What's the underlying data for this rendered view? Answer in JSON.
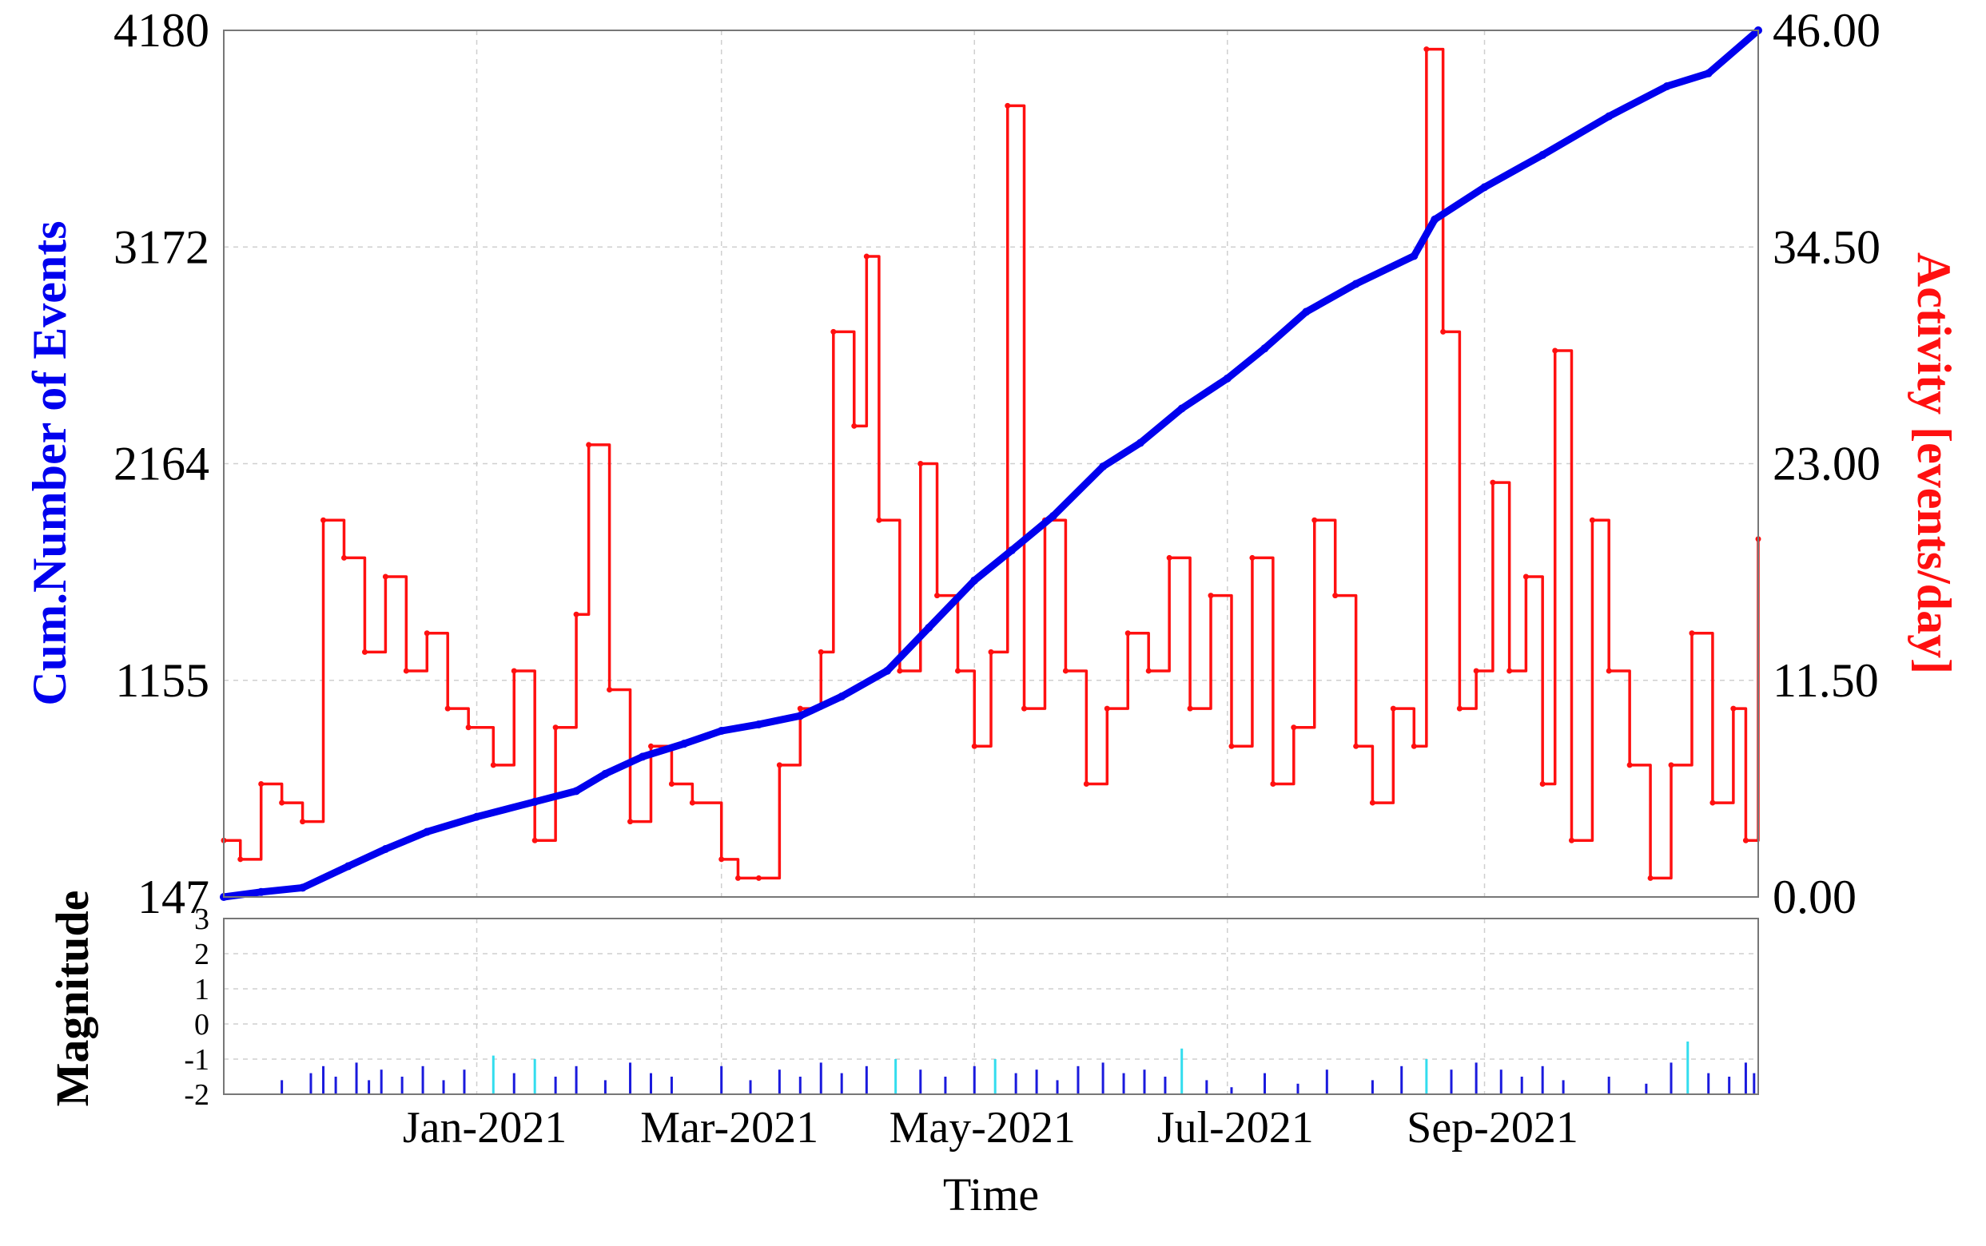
{
  "chart_data": [
    {
      "type": "line",
      "xlabel": "",
      "ylabel_left": "Cum.Number of Events",
      "ylabel_right": "Activity [events/day]",
      "x_range": [
        "2020-11-01",
        "2021-11-06"
      ],
      "x_ticks": [
        "2021-01-01",
        "2021-03-01",
        "2021-05-01",
        "2021-07-01",
        "2021-09-01"
      ],
      "x_tick_labels": [
        "Jan-2021",
        "Mar-2021",
        "May-2021",
        "Jul-2021",
        "Sep-2021"
      ],
      "ylim_left": [
        147,
        4180
      ],
      "yticks_left": [
        "147",
        "1155",
        "2164",
        "3172",
        "4180"
      ],
      "ylim_right": [
        0,
        46
      ],
      "yticks_right": [
        "0.00",
        "11.50",
        "23.00",
        "34.50",
        "46.00"
      ],
      "grid": true,
      "colors": {
        "cumulative": "#0000ee",
        "activity": "#ff1010"
      },
      "series": [
        {
          "name": "Cum.Number of Events",
          "axis": "left",
          "points": [
            [
              "2020-11-01",
              147
            ],
            [
              "2020-11-10",
              170
            ],
            [
              "2020-11-20",
              190
            ],
            [
              "2020-12-01",
              290
            ],
            [
              "2020-12-10",
              370
            ],
            [
              "2020-12-20",
              450
            ],
            [
              "2021-01-01",
              520
            ],
            [
              "2021-01-15",
              590
            ],
            [
              "2021-01-25",
              640
            ],
            [
              "2021-02-01",
              720
            ],
            [
              "2021-02-10",
              800
            ],
            [
              "2021-02-20",
              860
            ],
            [
              "2021-03-01",
              920
            ],
            [
              "2021-03-10",
              950
            ],
            [
              "2021-03-20",
              990
            ],
            [
              "2021-03-30",
              1080
            ],
            [
              "2021-04-10",
              1200
            ],
            [
              "2021-04-20",
              1400
            ],
            [
              "2021-05-01",
              1620
            ],
            [
              "2021-05-10",
              1760
            ],
            [
              "2021-05-20",
              1920
            ],
            [
              "2021-06-01",
              2150
            ],
            [
              "2021-06-10",
              2260
            ],
            [
              "2021-06-20",
              2420
            ],
            [
              "2021-07-01",
              2560
            ],
            [
              "2021-07-10",
              2700
            ],
            [
              "2021-07-20",
              2870
            ],
            [
              "2021-08-01",
              3000
            ],
            [
              "2021-08-15",
              3130
            ],
            [
              "2021-08-20",
              3300
            ],
            [
              "2021-09-01",
              3450
            ],
            [
              "2021-09-15",
              3600
            ],
            [
              "2021-10-01",
              3780
            ],
            [
              "2021-10-15",
              3920
            ],
            [
              "2021-10-25",
              3980
            ],
            [
              "2021-11-06",
              4180
            ]
          ]
        },
        {
          "name": "Activity [events/day]",
          "axis": "right",
          "points": [
            [
              "2020-11-01",
              3
            ],
            [
              "2020-11-05",
              2
            ],
            [
              "2020-11-10",
              6
            ],
            [
              "2020-11-15",
              5
            ],
            [
              "2020-11-20",
              4
            ],
            [
              "2020-11-25",
              20
            ],
            [
              "2020-11-30",
              18
            ],
            [
              "2020-12-05",
              13
            ],
            [
              "2020-12-10",
              17
            ],
            [
              "2020-12-15",
              12
            ],
            [
              "2020-12-20",
              14
            ],
            [
              "2020-12-25",
              10
            ],
            [
              "2020-12-30",
              9
            ],
            [
              "2021-01-05",
              7
            ],
            [
              "2021-01-10",
              12
            ],
            [
              "2021-01-15",
              3
            ],
            [
              "2021-01-20",
              9
            ],
            [
              "2021-01-25",
              15
            ],
            [
              "2021-01-28",
              24
            ],
            [
              "2021-02-02",
              11
            ],
            [
              "2021-02-07",
              4
            ],
            [
              "2021-02-12",
              8
            ],
            [
              "2021-02-17",
              6
            ],
            [
              "2021-02-22",
              5
            ],
            [
              "2021-03-01",
              2
            ],
            [
              "2021-03-05",
              1
            ],
            [
              "2021-03-10",
              1
            ],
            [
              "2021-03-15",
              7
            ],
            [
              "2021-03-20",
              10
            ],
            [
              "2021-03-25",
              13
            ],
            [
              "2021-03-28",
              30
            ],
            [
              "2021-04-02",
              25
            ],
            [
              "2021-04-05",
              34
            ],
            [
              "2021-04-08",
              20
            ],
            [
              "2021-04-13",
              12
            ],
            [
              "2021-04-18",
              23
            ],
            [
              "2021-04-22",
              16
            ],
            [
              "2021-04-27",
              12
            ],
            [
              "2021-05-01",
              8
            ],
            [
              "2021-05-05",
              13
            ],
            [
              "2021-05-09",
              42
            ],
            [
              "2021-05-13",
              10
            ],
            [
              "2021-05-18",
              20
            ],
            [
              "2021-05-23",
              12
            ],
            [
              "2021-05-28",
              6
            ],
            [
              "2021-06-02",
              10
            ],
            [
              "2021-06-07",
              14
            ],
            [
              "2021-06-12",
              12
            ],
            [
              "2021-06-17",
              18
            ],
            [
              "2021-06-22",
              10
            ],
            [
              "2021-06-27",
              16
            ],
            [
              "2021-07-02",
              8
            ],
            [
              "2021-07-07",
              18
            ],
            [
              "2021-07-12",
              6
            ],
            [
              "2021-07-17",
              9
            ],
            [
              "2021-07-22",
              20
            ],
            [
              "2021-07-27",
              16
            ],
            [
              "2021-08-01",
              8
            ],
            [
              "2021-08-05",
              5
            ],
            [
              "2021-08-10",
              10
            ],
            [
              "2021-08-15",
              8
            ],
            [
              "2021-08-18",
              45
            ],
            [
              "2021-08-22",
              30
            ],
            [
              "2021-08-26",
              10
            ],
            [
              "2021-08-30",
              12
            ],
            [
              "2021-09-03",
              22
            ],
            [
              "2021-09-07",
              12
            ],
            [
              "2021-09-11",
              17
            ],
            [
              "2021-09-15",
              6
            ],
            [
              "2021-09-18",
              29
            ],
            [
              "2021-09-22",
              3
            ],
            [
              "2021-09-27",
              20
            ],
            [
              "2021-10-01",
              12
            ],
            [
              "2021-10-06",
              7
            ],
            [
              "2021-10-11",
              1
            ],
            [
              "2021-10-16",
              7
            ],
            [
              "2021-10-21",
              14
            ],
            [
              "2021-10-26",
              5
            ],
            [
              "2021-10-31",
              10
            ],
            [
              "2021-11-03",
              3
            ],
            [
              "2021-11-06",
              19
            ]
          ]
        }
      ]
    },
    {
      "type": "bar",
      "ylabel": "Magnitude",
      "xlabel": "Time",
      "ylim": [
        -2,
        3
      ],
      "yticks": [
        "-2",
        "-1",
        "0",
        "1",
        "2",
        "3"
      ],
      "x_tick_labels": [
        "Jan-2021",
        "Mar-2021",
        "May-2021",
        "Jul-2021",
        "Sep-2021"
      ],
      "grid": true,
      "colors": {
        "events": "#1a1add",
        "highlight": "#33ddee"
      },
      "events": [
        [
          "2020-11-15",
          -1.6
        ],
        [
          "2020-11-22",
          -1.4
        ],
        [
          "2020-11-25",
          -1.2
        ],
        [
          "2020-11-28",
          -1.5
        ],
        [
          "2020-12-03",
          -1.1
        ],
        [
          "2020-12-06",
          -1.6
        ],
        [
          "2020-12-09",
          -1.3
        ],
        [
          "2020-12-14",
          -1.5
        ],
        [
          "2020-12-19",
          -1.2
        ],
        [
          "2020-12-24",
          -1.6
        ],
        [
          "2020-12-29",
          -1.3
        ],
        [
          "2021-01-05",
          -0.9
        ],
        [
          "2021-01-10",
          -1.4
        ],
        [
          "2021-01-15",
          -1.0
        ],
        [
          "2021-01-20",
          -1.5
        ],
        [
          "2021-01-25",
          -1.2
        ],
        [
          "2021-02-01",
          -1.6
        ],
        [
          "2021-02-07",
          -1.1
        ],
        [
          "2021-02-12",
          -1.4
        ],
        [
          "2021-02-17",
          -1.5
        ],
        [
          "2021-03-01",
          -1.2
        ],
        [
          "2021-03-08",
          -1.6
        ],
        [
          "2021-03-15",
          -1.3
        ],
        [
          "2021-03-20",
          -1.5
        ],
        [
          "2021-03-25",
          -1.1
        ],
        [
          "2021-03-30",
          -1.4
        ],
        [
          "2021-04-05",
          -1.2
        ],
        [
          "2021-04-12",
          -1.0
        ],
        [
          "2021-04-18",
          -1.3
        ],
        [
          "2021-04-24",
          -1.5
        ],
        [
          "2021-05-01",
          -1.2
        ],
        [
          "2021-05-06",
          -1.0
        ],
        [
          "2021-05-11",
          -1.4
        ],
        [
          "2021-05-16",
          -1.3
        ],
        [
          "2021-05-21",
          -1.6
        ],
        [
          "2021-05-26",
          -1.2
        ],
        [
          "2021-06-01",
          -1.1
        ],
        [
          "2021-06-06",
          -1.4
        ],
        [
          "2021-06-11",
          -1.3
        ],
        [
          "2021-06-16",
          -1.5
        ],
        [
          "2021-06-20",
          -0.7
        ],
        [
          "2021-06-26",
          -1.6
        ],
        [
          "2021-07-02",
          -1.8
        ],
        [
          "2021-07-10",
          -1.4
        ],
        [
          "2021-07-18",
          -1.7
        ],
        [
          "2021-07-25",
          -1.3
        ],
        [
          "2021-08-05",
          -1.6
        ],
        [
          "2021-08-12",
          -1.2
        ],
        [
          "2021-08-18",
          -1.0
        ],
        [
          "2021-08-24",
          -1.3
        ],
        [
          "2021-08-30",
          -1.1
        ],
        [
          "2021-09-05",
          -1.3
        ],
        [
          "2021-09-10",
          -1.5
        ],
        [
          "2021-09-15",
          -1.2
        ],
        [
          "2021-09-20",
          -1.6
        ],
        [
          "2021-10-01",
          -1.5
        ],
        [
          "2021-10-10",
          -1.7
        ],
        [
          "2021-10-16",
          -1.1
        ],
        [
          "2021-10-20",
          -0.5
        ],
        [
          "2021-10-25",
          -1.4
        ],
        [
          "2021-10-30",
          -1.5
        ],
        [
          "2021-11-03",
          -1.1
        ],
        [
          "2021-11-05",
          -1.4
        ]
      ]
    }
  ]
}
